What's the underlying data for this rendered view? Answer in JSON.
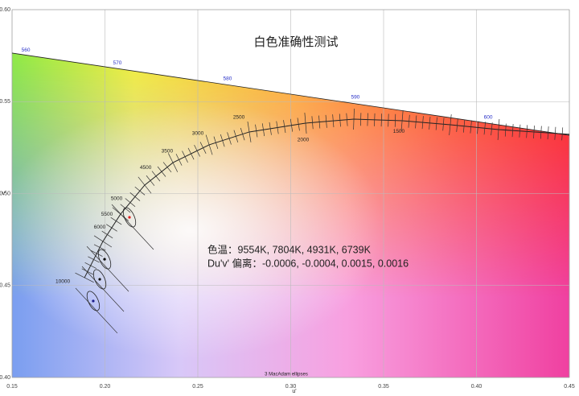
{
  "chart_data": {
    "type": "scatter",
    "title": "白色准确性测试",
    "x_label": "u'",
    "y_label": "v'",
    "xlim": [
      0.15,
      0.45
    ],
    "ylim": [
      0.4,
      0.6
    ],
    "xticks": [
      0.15,
      {
        "value": 0.2,
        "label": "0.20"
      },
      0.25,
      {
        "value": 0.3,
        "label": "0.30"
      },
      0.35,
      {
        "value": 0.4,
        "label": "0.40"
      },
      0.45
    ],
    "yticks": [
      {
        "value": 0.4,
        "label": "0.40"
      },
      0.45,
      {
        "value": 0.5,
        "label": "0.50"
      },
      0.55,
      {
        "value": 0.6,
        "label": "0.60"
      }
    ],
    "grid": true,
    "x": [
      0.1937,
      0.1972,
      0.2132,
      0.1998
    ],
    "values": [
      0.4416,
      0.4534,
      0.4871,
      0.4643
    ],
    "colors": [
      "#1a1a8a",
      "#111111",
      "#e02020",
      "#000000"
    ],
    "ellipse_label": "3 MacAdam ellipses",
    "annotations": [
      "色温：9554K, 7804K, 4931K, 6739K",
      "Du'v' 偏离：-0.0006, -0.0004, 0.0015, 0.0016"
    ],
    "spectral_locus": {
      "x": [
        0.15,
        0.45
      ],
      "y": [
        0.5764,
        0.5317
      ],
      "labels": [
        {
          "label": "560",
          "x": 0.1574,
          "y": 0.5781
        },
        {
          "label": "570",
          "x": 0.2067,
          "y": 0.5711
        },
        {
          "label": "580",
          "x": 0.266,
          "y": 0.5624
        },
        {
          "label": "590",
          "x": 0.3348,
          "y": 0.5523
        },
        {
          "label": "600",
          "x": 0.4063,
          "y": 0.5414
        }
      ]
    },
    "planckian_locus": {
      "x": [
        0.189,
        0.1989,
        0.2084,
        0.2214,
        0.2366,
        0.2561,
        0.2777,
        0.308,
        0.334,
        0.36,
        0.3859,
        0.4119,
        0.45
      ],
      "y": [
        0.4543,
        0.474,
        0.4888,
        0.5046,
        0.5168,
        0.5265,
        0.5335,
        0.5383,
        0.5405,
        0.5396,
        0.5374,
        0.5348,
        0.5322
      ],
      "labels": [
        {
          "label": "10000",
          "x": 0.1773,
          "y": 0.4521
        },
        {
          "label": "6000",
          "x": 0.1972,
          "y": 0.4818
        },
        {
          "label": "5500",
          "x": 0.2011,
          "y": 0.4888
        },
        {
          "label": "5000",
          "x": 0.2063,
          "y": 0.4972
        },
        {
          "label": "4500",
          "x": 0.2219,
          "y": 0.5142
        },
        {
          "label": "3500",
          "x": 0.2335,
          "y": 0.523
        },
        {
          "label": "3000",
          "x": 0.25,
          "y": 0.5326
        },
        {
          "label": "2500",
          "x": 0.2721,
          "y": 0.5414
        },
        {
          "label": "2000",
          "x": 0.3067,
          "y": 0.5291
        },
        {
          "label": "1500",
          "x": 0.3582,
          "y": 0.5339
        }
      ]
    }
  }
}
